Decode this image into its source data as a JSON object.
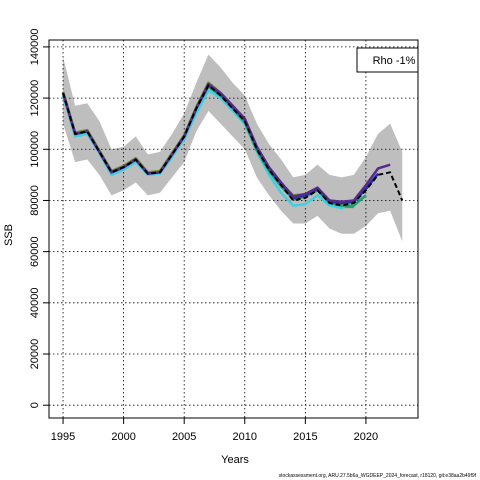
{
  "chart_data": {
    "type": "line",
    "xlabel": "Years",
    "ylabel": "SSB",
    "annotation": "Rho -1%",
    "footnote": "stockassessment.org, ARU.27.5b6a_WGDEEP_2024_forecast, r18120, git:e38aa2b49f9f",
    "x": [
      1995,
      1996,
      1997,
      1998,
      1999,
      2000,
      2001,
      2002,
      2003,
      2004,
      2005,
      2006,
      2007,
      2008,
      2009,
      2010,
      2011,
      2012,
      2013,
      2014,
      2015,
      2016,
      2017,
      2018,
      2019,
      2020,
      2021,
      2022,
      2023
    ],
    "band": {
      "color": "#bebebe",
      "upper": [
        136000,
        117000,
        118000,
        111000,
        100000,
        101000,
        105000,
        98000,
        99000,
        106000,
        114000,
        126000,
        137000,
        132000,
        126000,
        121000,
        110000,
        102000,
        96000,
        89000,
        90000,
        94000,
        90000,
        89000,
        90000,
        97000,
        106000,
        110000,
        99000
      ],
      "lower": [
        110000,
        95000,
        96000,
        90000,
        82000,
        84000,
        87000,
        82000,
        83000,
        89000,
        95000,
        107000,
        115000,
        110000,
        105000,
        100000,
        89000,
        82000,
        76000,
        71000,
        71000,
        74000,
        69000,
        67000,
        67000,
        70000,
        75000,
        76000,
        64000
      ]
    },
    "series": [
      {
        "color": "#6b8e23",
        "values": [
          122500,
          106500,
          107500,
          99500,
          91500,
          93500,
          96500,
          91000,
          91500,
          98500,
          105500,
          116500,
          126000,
          122000,
          117000,
          111500,
          100500,
          92000,
          86500,
          82000,
          82500,
          85000,
          79500,
          77500,
          77500,
          null,
          null,
          null,
          null
        ]
      },
      {
        "color": "#40d0e0",
        "values": [
          121000,
          105000,
          106000,
          98500,
          90000,
          92000,
          95000,
          90000,
          90500,
          97000,
          104000,
          114000,
          123000,
          120000,
          115000,
          110000,
          99000,
          90000,
          83000,
          78000,
          78500,
          82000,
          78000,
          77000,
          80000,
          null,
          null,
          null,
          null
        ]
      },
      {
        "color": "#20a070",
        "values": [
          122000,
          106000,
          107000,
          99000,
          91000,
          93000,
          96000,
          90500,
          91000,
          98000,
          105000,
          116000,
          124500,
          121000,
          116000,
          110500,
          99500,
          91500,
          85500,
          80500,
          81500,
          84000,
          79000,
          78000,
          78000,
          82000,
          null,
          null,
          null
        ]
      },
      {
        "color": "#2030b0",
        "values": [
          122000,
          106000,
          107000,
          99000,
          91000,
          93000,
          96000,
          90500,
          91000,
          98000,
          105000,
          116000,
          125000,
          121500,
          116500,
          111500,
          100500,
          92500,
          86500,
          81000,
          82000,
          84500,
          79500,
          79000,
          79500,
          84500,
          90500,
          null,
          null
        ]
      },
      {
        "color": "#5a2a8a",
        "values": [
          122000,
          106000,
          107000,
          99000,
          91000,
          93000,
          96000,
          90500,
          91000,
          98000,
          105000,
          116000,
          125500,
          122000,
          117000,
          112000,
          101000,
          93000,
          87000,
          81500,
          82500,
          85000,
          80000,
          79500,
          80000,
          86000,
          92500,
          94000,
          null
        ]
      },
      {
        "color": "#000000",
        "dashed": true,
        "values": [
          122000,
          106000,
          107000,
          99000,
          91000,
          93000,
          96000,
          90500,
          91000,
          98000,
          105000,
          116000,
          125000,
          121000,
          116000,
          111000,
          100000,
          92000,
          86000,
          80000,
          81000,
          84000,
          79000,
          78000,
          79000,
          84000,
          90000,
          91000,
          80000
        ]
      }
    ],
    "xlim": [
      1993.84,
      2024.3
    ],
    "ylim": [
      -5000,
      142700
    ],
    "xticks": [
      1995,
      2000,
      2005,
      2010,
      2015,
      2020
    ],
    "yticks": [
      0,
      20000,
      40000,
      60000,
      80000,
      100000,
      120000,
      140000
    ],
    "grid": true
  }
}
